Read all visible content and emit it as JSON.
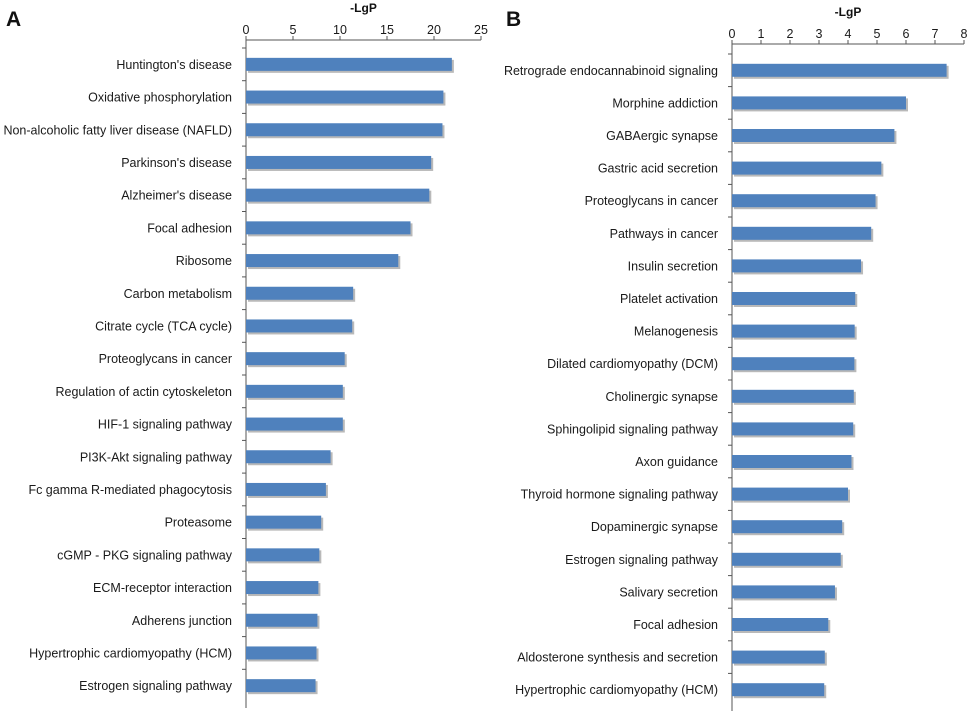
{
  "panels": [
    {
      "letter": "A",
      "chart_data": {
        "type": "bar",
        "orientation": "horizontal",
        "title": "",
        "xlabel": "-LgP",
        "ylabel": "",
        "xlim": [
          0,
          25
        ],
        "ticks": [
          "0",
          "5",
          "10",
          "15",
          "20",
          "25"
        ],
        "tick_values": [
          0,
          5,
          10,
          15,
          20,
          25
        ],
        "bar_color": "#4F81BD",
        "categories": [
          "Huntington's disease",
          "Oxidative phosphorylation",
          "Non-alcoholic fatty liver disease (NAFLD)",
          "Parkinson's disease",
          "Alzheimer's disease",
          "Focal adhesion",
          "Ribosome",
          "Carbon metabolism",
          "Citrate cycle (TCA cycle)",
          "Proteoglycans in cancer",
          "Regulation of actin cytoskeleton",
          "HIF-1 signaling pathway",
          "PI3K-Akt signaling pathway",
          "Fc gamma R-mediated phagocytosis",
          "Proteasome",
          "cGMP - PKG signaling pathway",
          "ECM-receptor interaction",
          "Adherens junction",
          "Hypertrophic cardiomyopathy (HCM)",
          "Estrogen signaling pathway"
        ],
        "values": [
          21.9,
          21.0,
          20.9,
          19.7,
          19.5,
          17.5,
          16.2,
          11.4,
          11.3,
          10.5,
          10.3,
          10.3,
          9.0,
          8.5,
          8.0,
          7.8,
          7.7,
          7.6,
          7.5,
          7.4
        ]
      }
    },
    {
      "letter": "B",
      "chart_data": {
        "type": "bar",
        "orientation": "horizontal",
        "title": "",
        "xlabel": "-LgP",
        "ylabel": "",
        "xlim": [
          0,
          8
        ],
        "ticks": [
          "0",
          "1",
          "2",
          "3",
          "4",
          "5",
          "6",
          "7",
          "8"
        ],
        "tick_values": [
          0,
          1,
          2,
          3,
          4,
          5,
          6,
          7,
          8
        ],
        "bar_color": "#4F81BD",
        "categories": [
          "Retrograde endocannabinoid signaling",
          "Morphine addiction",
          "GABAergic synapse",
          "Gastric acid secretion",
          "Proteoglycans in cancer",
          "Pathways in cancer",
          "Insulin secretion",
          "Platelet activation",
          "Melanogenesis",
          "Dilated cardiomyopathy (DCM)",
          "Cholinergic synapse",
          "Sphingolipid signaling pathway",
          "Axon guidance",
          "Thyroid hormone signaling pathway",
          "Dopaminergic synapse",
          "Estrogen signaling pathway",
          "Salivary secretion",
          "Focal adhesion",
          "Aldosterone synthesis and secretion",
          "Hypertrophic cardiomyopathy (HCM)"
        ],
        "values": [
          7.4,
          6.0,
          5.6,
          5.15,
          4.95,
          4.8,
          4.45,
          4.25,
          4.23,
          4.22,
          4.2,
          4.18,
          4.12,
          4.0,
          3.8,
          3.75,
          3.55,
          3.32,
          3.2,
          3.18
        ]
      }
    }
  ]
}
